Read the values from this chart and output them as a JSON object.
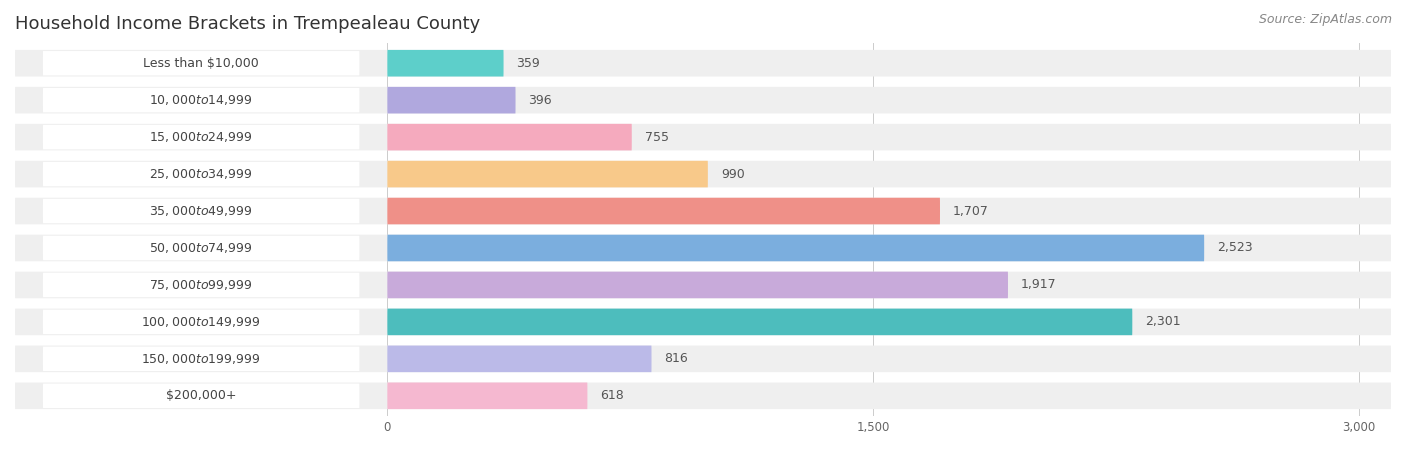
{
  "title": "Household Income Brackets in Trempealeau County",
  "source": "Source: ZipAtlas.com",
  "categories": [
    "Less than $10,000",
    "$10,000 to $14,999",
    "$15,000 to $24,999",
    "$25,000 to $34,999",
    "$35,000 to $49,999",
    "$50,000 to $74,999",
    "$75,000 to $99,999",
    "$100,000 to $149,999",
    "$150,000 to $199,999",
    "$200,000+"
  ],
  "values": [
    359,
    396,
    755,
    990,
    1707,
    2523,
    1917,
    2301,
    816,
    618
  ],
  "bar_colors": [
    "#5DCFCA",
    "#B0A8DE",
    "#F5AABE",
    "#F8C98A",
    "#EF9088",
    "#7BAEDE",
    "#C8AADA",
    "#4DBDBD",
    "#BBBAE8",
    "#F5B8D0"
  ],
  "row_bg_color": "#efefef",
  "label_bg_color": "#ffffff",
  "page_bg_color": "#ffffff",
  "xlim": [
    0,
    3000
  ],
  "xticks": [
    0,
    1500,
    3000
  ],
  "title_fontsize": 13,
  "label_fontsize": 9,
  "value_fontsize": 9,
  "source_fontsize": 9
}
